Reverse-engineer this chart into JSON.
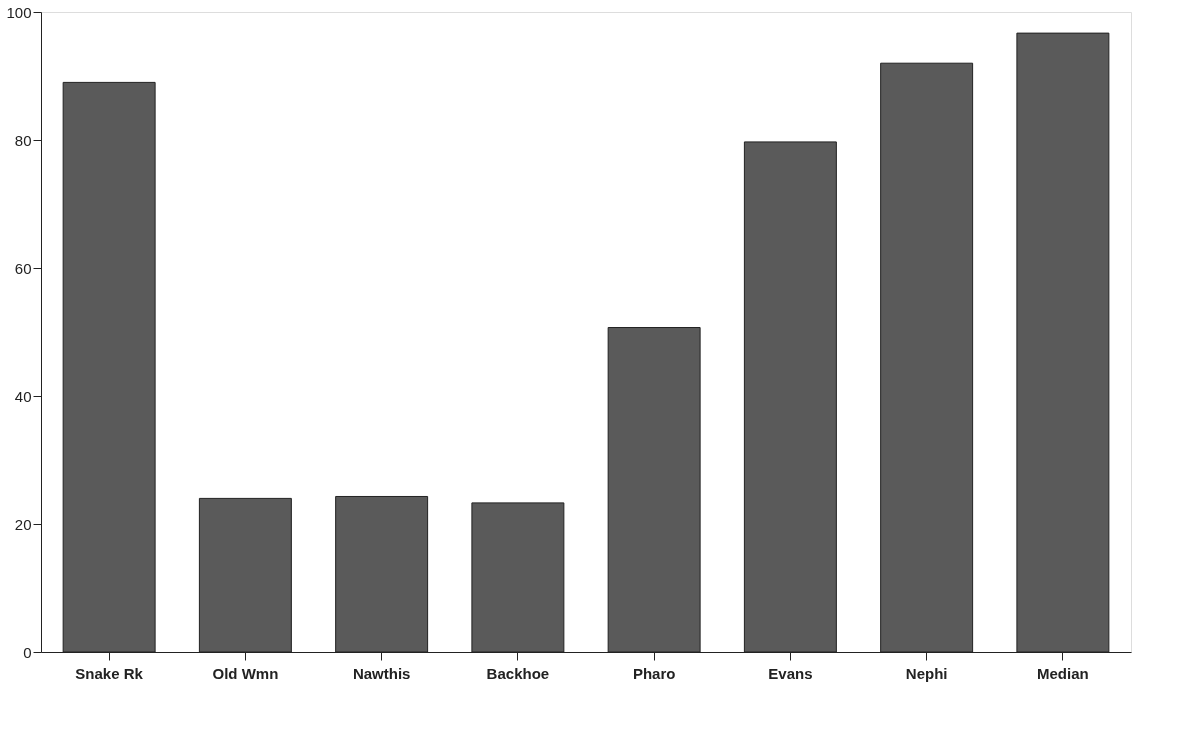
{
  "chart_data": {
    "type": "bar",
    "categories": [
      "Snake Rk",
      "Old Wmn",
      "Nawthis",
      "Backhoe",
      "Pharo",
      "Evans",
      "Nephi",
      "Median"
    ],
    "values": [
      89,
      24,
      24.3,
      23.3,
      50.7,
      79.7,
      92,
      96.7
    ],
    "color": "#5a5a5a",
    "ylim": [
      0,
      100
    ],
    "yticks": [
      0,
      20,
      40,
      60,
      80,
      100
    ],
    "grid": false
  }
}
